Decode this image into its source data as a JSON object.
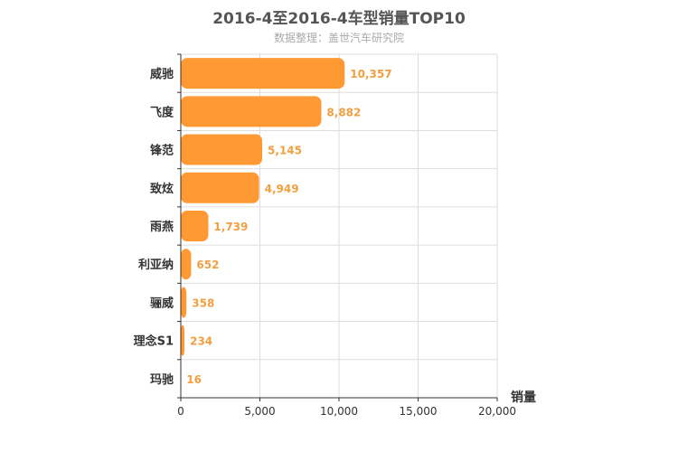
{
  "title": "2016-4至2016-4车型销量TOP10",
  "subtitle": "数据整理：盖世汽车研究院",
  "colors": {
    "bar": "#ff9933",
    "value_label": "#f0a040",
    "grid": "#dddddd",
    "axis": "#333333"
  },
  "chart_data": {
    "type": "bar",
    "orientation": "horizontal",
    "categories": [
      "威驰",
      "飞度",
      "锋范",
      "致炫",
      "雨燕",
      "利亚纳",
      "骊威",
      "理念S1",
      "玛驰"
    ],
    "values": [
      10357,
      8882,
      5145,
      4949,
      1739,
      652,
      358,
      234,
      16
    ],
    "value_labels": [
      "10,357",
      "8,882",
      "5,145",
      "4,949",
      "1,739",
      "652",
      "358",
      "234",
      "16"
    ],
    "xlim": [
      0,
      20000
    ],
    "x_ticks": [
      0,
      5000,
      10000,
      15000,
      20000
    ],
    "x_tick_labels": [
      "0",
      "5,000",
      "10,000",
      "15,000",
      "20,000"
    ],
    "xlabel": "销量",
    "ylabel": "",
    "grid": true
  }
}
